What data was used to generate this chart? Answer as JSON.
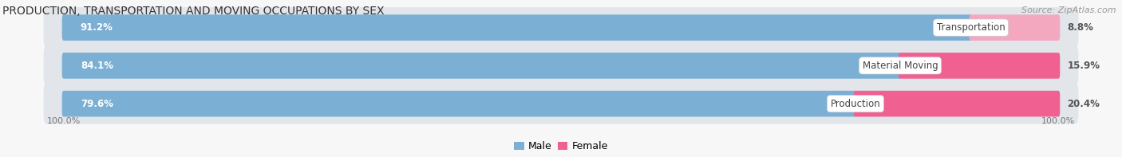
{
  "title": "PRODUCTION, TRANSPORTATION AND MOVING OCCUPATIONS BY SEX",
  "source": "Source: ZipAtlas.com",
  "categories": [
    "Transportation",
    "Material Moving",
    "Production"
  ],
  "male_values": [
    91.2,
    84.1,
    79.6
  ],
  "female_values": [
    8.8,
    15.9,
    20.4
  ],
  "male_color": "#7bafd4",
  "female_color": "#f06090",
  "female_color_light": "#f4a8c0",
  "row_bg_color": "#e2e5ea",
  "fig_bg_color": "#f7f7f7",
  "title_color": "#333333",
  "source_color": "#999999",
  "male_label_color": "#ffffff",
  "female_label_color": "#555555",
  "cat_label_color": "#444444",
  "title_fontsize": 10,
  "source_fontsize": 8,
  "bar_label_fontsize": 8.5,
  "category_fontsize": 8.5,
  "axis_label_fontsize": 8,
  "legend_fontsize": 9,
  "figsize": [
    14.06,
    1.97
  ],
  "dpi": 100
}
